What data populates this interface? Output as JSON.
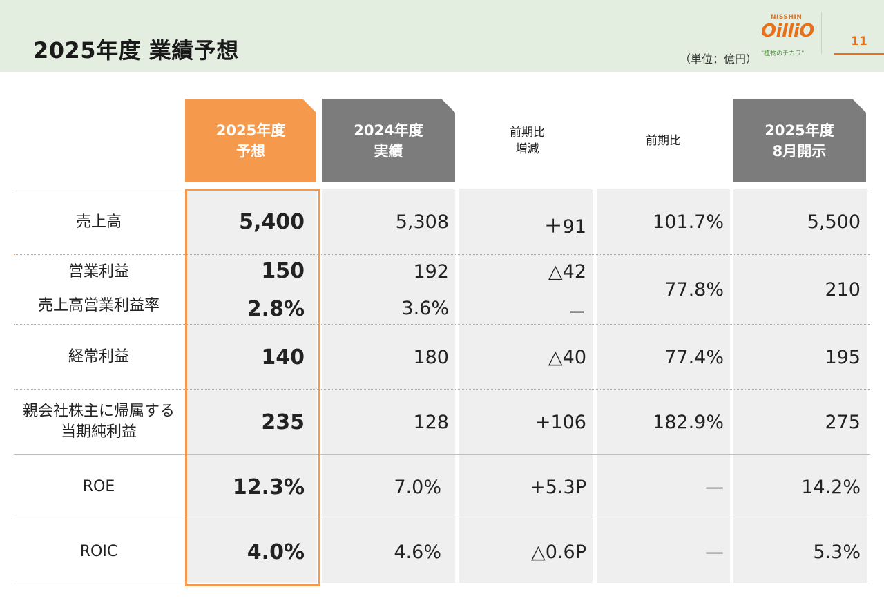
{
  "header": {
    "title": "2025年度 業績予想",
    "unit": "（単位：億円）",
    "page_number": "11",
    "logo": {
      "brand_top": "NISSHIN",
      "brand_main": "OilliO",
      "tagline": "\"植物のチカラ\""
    }
  },
  "columns": {
    "forecast_2025": [
      "2025年度",
      "予想"
    ],
    "actual_2024": [
      "2024年度",
      "実績"
    ],
    "yoy_change": [
      "前期比",
      "増減"
    ],
    "yoy_ratio": "前期比",
    "august_disclosure": [
      "2025年度",
      "8月開示"
    ]
  },
  "rows": {
    "sales": {
      "label": "売上高",
      "forecast": "5,400",
      "actual": "5,308",
      "change": "＋91",
      "ratio": "101.7%",
      "august": "5,500"
    },
    "operating_profit": {
      "label": "営業利益",
      "forecast": "150",
      "actual": "192",
      "change": "△42",
      "ratio": "77.8%",
      "august": "210"
    },
    "operating_margin": {
      "label": "売上高営業利益率",
      "forecast": "2.8%",
      "actual": "3.6%",
      "change": "－"
    },
    "ordinary_profit": {
      "label": "経常利益",
      "forecast": "140",
      "actual": "180",
      "change": "△40",
      "ratio": "77.4%",
      "august": "195"
    },
    "net_income": {
      "label": [
        "親会社株主に帰属する",
        "当期純利益"
      ],
      "forecast": "235",
      "actual": "128",
      "change": "+106",
      "ratio": "182.9%",
      "august": "275"
    },
    "roe": {
      "label": "ROE",
      "forecast": "12.3%",
      "actual": "7.0%",
      "change": "+5.3P",
      "ratio": "—",
      "august": "14.2%"
    },
    "roic": {
      "label": "ROIC",
      "forecast": "4.0%",
      "actual": "4.6%",
      "change": "△0.6P",
      "ratio": "—",
      "august": "5.3%"
    }
  }
}
